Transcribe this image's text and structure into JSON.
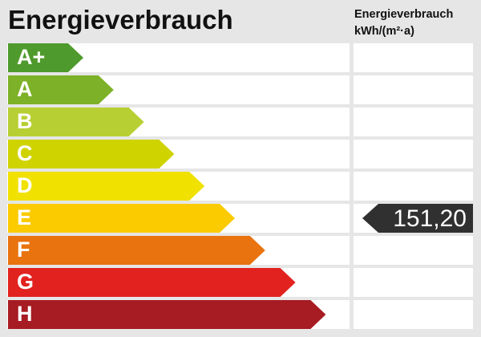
{
  "chart_data": {
    "type": "bar",
    "title": "Energieverbrauch",
    "value_header": "Energieverbrauch",
    "unit": "kWh/(m²·a)",
    "categories": [
      "A+",
      "A",
      "B",
      "C",
      "D",
      "E",
      "F",
      "G",
      "H"
    ],
    "colors": [
      "#4f9a2c",
      "#7db127",
      "#b8cf33",
      "#cfd300",
      "#f0e100",
      "#fbcb00",
      "#e9730f",
      "#e2221f",
      "#a71b23"
    ],
    "value": "151,20",
    "value_category": "E"
  }
}
